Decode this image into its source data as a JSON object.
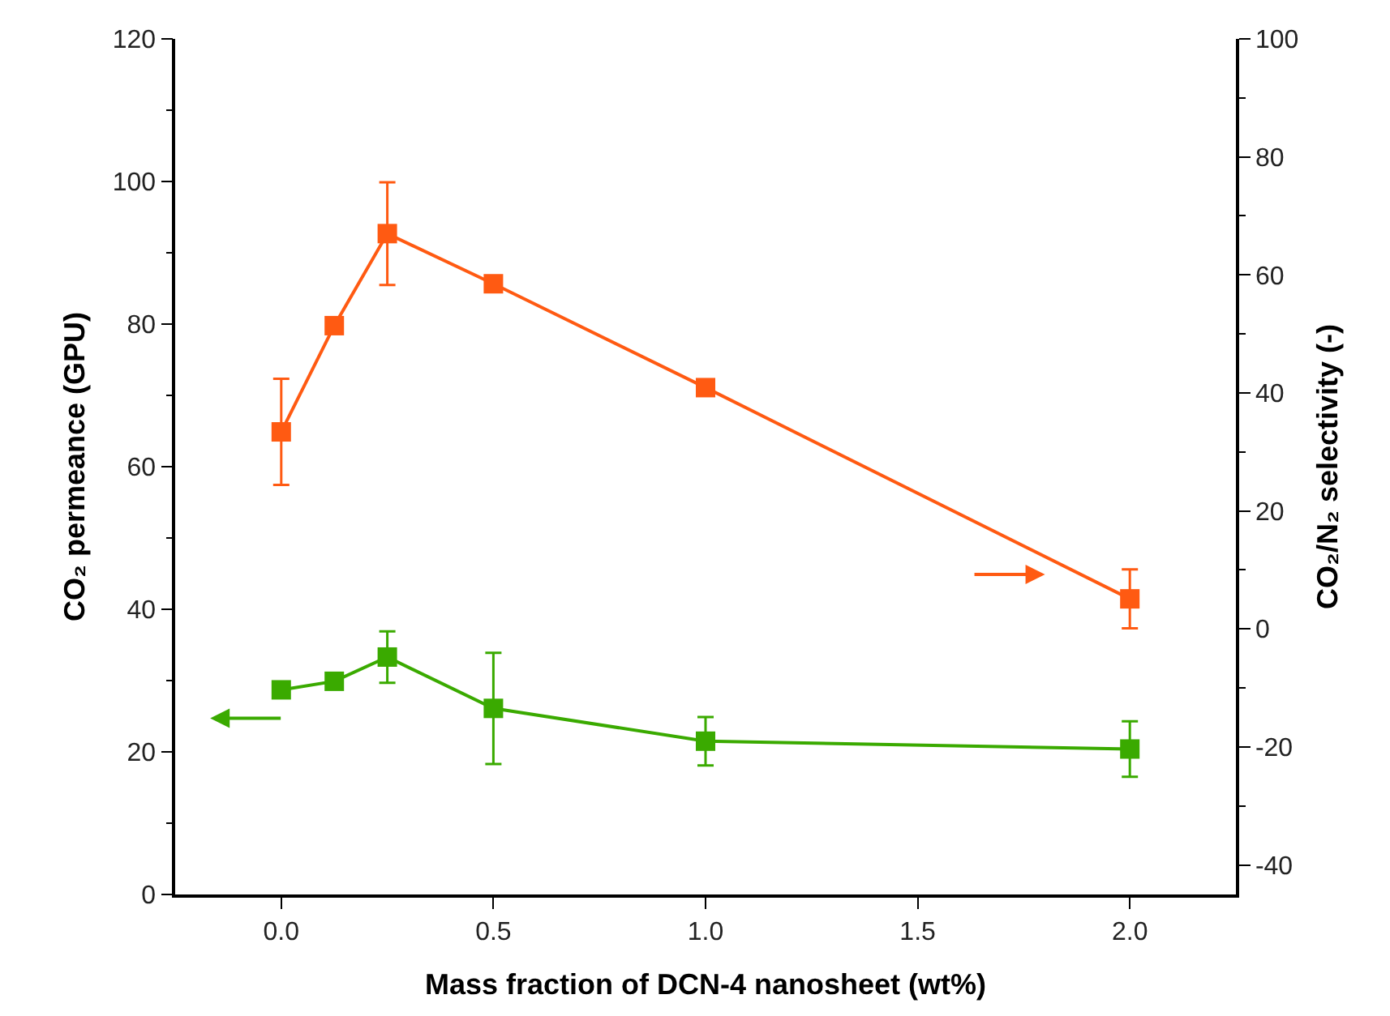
{
  "chart_data": {
    "type": "line",
    "xlabel": "Mass fraction of DCN-4 nanosheet (wt%)",
    "ylabel": "CO₂ permeance (GPU)",
    "y2label": "CO₂/N₂ selectivity (-)",
    "x": [
      0,
      0.125,
      0.25,
      0.5,
      1.0,
      2.0
    ],
    "xlim": [
      -0.25,
      2.25
    ],
    "xticks": [
      {
        "value": 0,
        "label": "0.0"
      },
      {
        "value": 0.5,
        "label": "0.5"
      },
      {
        "value": 1.0,
        "label": "1.0"
      },
      {
        "value": 1.5,
        "label": "1.5"
      },
      {
        "value": 2.0,
        "label": "2.0"
      }
    ],
    "ylim": [
      0,
      120
    ],
    "yticks": [
      0,
      20,
      40,
      60,
      80,
      100,
      120
    ],
    "y2lim": [
      -45,
      100
    ],
    "y2ticks": [
      -40,
      -20,
      0,
      20,
      40,
      60,
      80,
      100
    ],
    "series": [
      {
        "color": "#ff5a12",
        "axis": "y2",
        "values": [
          33.4,
          51.4,
          67.0,
          58.5,
          40.9,
          5.1
        ],
        "errors": [
          9,
          null,
          8.7,
          null,
          null,
          5
        ]
      },
      {
        "color": "#3aaa00",
        "values": [
          28.7,
          29.9,
          33.3,
          26.1,
          21.5,
          20.4
        ],
        "errors": [
          null,
          null,
          3.6,
          7.8,
          3.4,
          3.9
        ]
      }
    ],
    "marker": "square",
    "line_style": "solid"
  }
}
